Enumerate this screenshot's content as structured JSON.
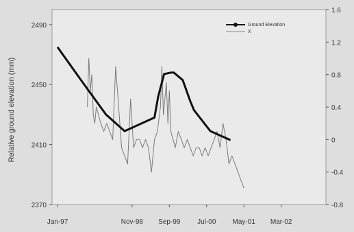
{
  "chart_data": {
    "type": "line",
    "title": "",
    "ylabel": "Relative ground elevation (mm)",
    "y2label": "",
    "x_ticks": [
      "Jan-97",
      "Nov-98",
      "Sep-99",
      "Jul-00",
      "May-01",
      "Mar-02"
    ],
    "x_tick_pos": [
      0,
      1,
      1.5,
      2,
      2.5,
      3
    ],
    "xlim": [
      0,
      3.6
    ],
    "y_ticks": [
      "2370",
      "2410",
      "2450",
      "2490"
    ],
    "ylim": [
      2370,
      2500
    ],
    "y2_ticks": [
      "-0.8",
      "-0.4",
      "0",
      "0.4",
      "0.8",
      "1.2",
      "1.6"
    ],
    "y2lim": [
      -0.8,
      1.6
    ],
    "legend": {
      "position": "top-right",
      "entries": [
        "Ground Elevation",
        "X"
      ]
    },
    "grid": false,
    "series": [
      {
        "name": "Ground Elevation",
        "axis": "left",
        "style": "thick-black-line",
        "x": [
          0.0,
          0.33,
          0.65,
          0.9,
          1.3,
          1.35,
          1.43,
          1.52,
          1.56,
          1.68,
          1.78,
          1.83,
          2.05,
          2.32
        ],
        "y": [
          2475,
          2452,
          2430,
          2419,
          2428,
          2442,
          2457,
          2458,
          2458,
          2453,
          2439,
          2433,
          2419,
          2413
        ]
      },
      {
        "name": "X",
        "axis": "right",
        "style": "thin-gray-noisy-line",
        "x": [
          0.4,
          0.42,
          0.44,
          0.46,
          0.48,
          0.5,
          0.52,
          0.55,
          0.58,
          0.62,
          0.66,
          0.7,
          0.74,
          0.78,
          0.82,
          0.86,
          0.9,
          0.94,
          0.98,
          1.02,
          1.06,
          1.1,
          1.14,
          1.18,
          1.22,
          1.26,
          1.3,
          1.34,
          1.38,
          1.4,
          1.42,
          1.44,
          1.46,
          1.48,
          1.5,
          1.52,
          1.55,
          1.58,
          1.62,
          1.66,
          1.7,
          1.74,
          1.78,
          1.82,
          1.86,
          1.9,
          1.94,
          1.98,
          2.02,
          2.06,
          2.1,
          2.14,
          2.18,
          2.22,
          2.26,
          2.3,
          2.34,
          2.38,
          2.42,
          2.46,
          2.5
        ],
        "y": [
          0.4,
          1.0,
          0.6,
          0.8,
          0.3,
          0.2,
          0.4,
          0.3,
          0.2,
          0.1,
          0.2,
          0.1,
          0.0,
          0.9,
          0.4,
          -0.1,
          -0.2,
          -0.3,
          0.5,
          -0.1,
          0.0,
          0.0,
          -0.1,
          0.0,
          -0.1,
          -0.4,
          0.0,
          0.1,
          0.4,
          0.9,
          0.3,
          0.5,
          0.7,
          0.2,
          0.6,
          0.1,
          0.0,
          -0.1,
          0.1,
          0.0,
          -0.1,
          0.0,
          -0.1,
          -0.2,
          -0.1,
          -0.1,
          -0.2,
          -0.1,
          -0.2,
          -0.1,
          0.0,
          0.1,
          -0.1,
          0.2,
          0.0,
          -0.3,
          -0.2,
          -0.3,
          -0.4,
          -0.5,
          -0.6
        ]
      }
    ]
  }
}
